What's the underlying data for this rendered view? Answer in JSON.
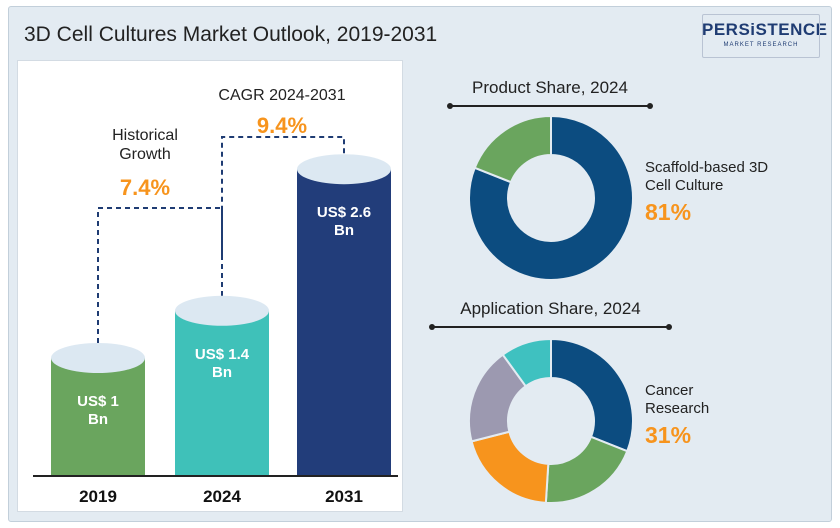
{
  "title": "3D Cell Cultures Market Outlook, 2019-2031",
  "logo": {
    "text": "PERSiSTENCE",
    "subtext": "MARKET RESEARCH"
  },
  "colors": {
    "bar_2019": "#6aa55e",
    "bar_2024": "#3fc1b9",
    "bar_2031": "#223d7a",
    "cap": "#dce8f2",
    "accent_orange": "#f7941d",
    "dashed": "#1f3c73",
    "donut_dark_blue": "#0c4c80",
    "donut_green": "#6aa55e",
    "donut_orange": "#f7941d",
    "donut_gray": "#9c99b0",
    "donut_teal": "#3fc1c0"
  },
  "annotations": {
    "historical_label": "Historical\nGrowth",
    "historical_value": "7.4%",
    "cagr_label": "CAGR 2024-2031",
    "cagr_value": "9.4%"
  },
  "chart_data": [
    {
      "type": "bar",
      "categories": [
        "2019",
        "2024",
        "2031"
      ],
      "values": [
        1,
        1.4,
        2.6
      ],
      "value_labels": [
        "US$ 1\nBn",
        "US$ 1.4\nBn",
        "US$ 2.6\nBn"
      ],
      "unit": "US$ Bn",
      "title": "",
      "xlabel": "",
      "ylabel": ""
    },
    {
      "type": "pie",
      "title": "Product Share, 2024",
      "labels": [
        "Scaffold-based 3D Cell Culture",
        ""
      ],
      "values": [
        81,
        19
      ],
      "highlight_label": "Scaffold-based 3D\nCell Culture",
      "highlight_value": "81%"
    },
    {
      "type": "pie",
      "title": "Application Share, 2024",
      "labels": [
        "Cancer Research",
        "",
        "",
        "",
        ""
      ],
      "values": [
        31,
        20,
        20,
        19,
        10
      ],
      "highlight_label": "Cancer\nResearch",
      "highlight_value": "31%"
    }
  ]
}
